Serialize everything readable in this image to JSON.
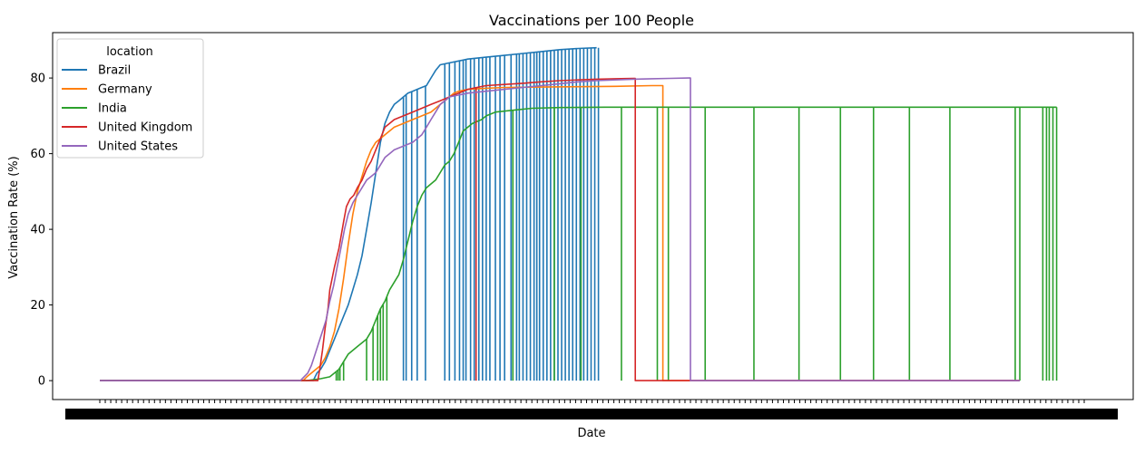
{
  "chart_data": {
    "type": "line",
    "title": "Vaccinations per 100 People",
    "xlabel": "Date",
    "ylabel": "Vaccination Rate (%)",
    "ylim": [
      -5,
      92
    ],
    "yticks": [
      0,
      20,
      40,
      60,
      80
    ],
    "xticks_note": "dense overlapping date tick labels (unreadable)",
    "grid": false,
    "legend": {
      "title": "location",
      "placement": "top-left",
      "entries": [
        "Brazil",
        "Germany",
        "India",
        "United Kingdom",
        "United States"
      ]
    },
    "series": [
      {
        "name": "Brazil",
        "color": "#1f77b4",
        "points": [
          [
            0,
            0
          ],
          [
            232,
            0
          ],
          [
            234,
            1
          ],
          [
            236,
            2
          ],
          [
            240,
            3
          ],
          [
            245,
            5
          ],
          [
            250,
            8
          ],
          [
            255,
            11
          ],
          [
            260,
            14
          ],
          [
            265,
            17
          ],
          [
            270,
            20
          ],
          [
            275,
            24
          ],
          [
            280,
            28
          ],
          [
            285,
            33
          ],
          [
            290,
            40
          ],
          [
            295,
            47
          ],
          [
            300,
            55
          ],
          [
            305,
            63
          ],
          [
            310,
            68
          ],
          [
            315,
            71
          ],
          [
            320,
            73
          ],
          [
            325,
            74
          ],
          [
            330,
            75
          ],
          [
            335,
            76
          ],
          [
            340,
            76.5
          ],
          [
            345,
            77
          ],
          [
            350,
            77.5
          ],
          [
            355,
            78
          ],
          [
            360,
            80
          ],
          [
            365,
            82
          ],
          [
            370,
            83.5
          ],
          [
            380,
            84
          ],
          [
            390,
            84.5
          ],
          [
            400,
            85
          ],
          [
            420,
            85.5
          ],
          [
            440,
            86
          ],
          [
            460,
            86.5
          ],
          [
            480,
            87
          ],
          [
            500,
            87.5
          ],
          [
            520,
            87.8
          ],
          [
            540,
            88
          ]
        ],
        "dropouts_x": [
          330,
          333,
          339,
          345,
          354,
          375,
          380,
          386,
          391,
          395,
          398,
          403,
          407,
          412,
          416,
          420,
          424,
          430,
          435,
          440,
          447,
          453,
          456,
          460,
          464,
          468,
          472,
          475,
          478,
          482,
          486,
          490,
          494,
          498,
          502,
          506,
          510,
          514,
          518,
          522,
          526,
          530,
          534,
          538,
          542
        ]
      },
      {
        "name": "Germany",
        "color": "#ff7f0e",
        "points": [
          [
            0,
            0
          ],
          [
            221,
            0
          ],
          [
            225,
            1
          ],
          [
            230,
            2
          ],
          [
            240,
            4
          ],
          [
            245,
            6
          ],
          [
            250,
            9
          ],
          [
            255,
            13
          ],
          [
            260,
            19
          ],
          [
            265,
            27
          ],
          [
            270,
            36
          ],
          [
            275,
            44
          ],
          [
            280,
            50
          ],
          [
            285,
            54
          ],
          [
            290,
            58
          ],
          [
            295,
            61
          ],
          [
            300,
            63
          ],
          [
            310,
            65
          ],
          [
            320,
            67
          ],
          [
            330,
            68
          ],
          [
            340,
            69
          ],
          [
            350,
            70
          ],
          [
            360,
            71
          ],
          [
            365,
            72
          ],
          [
            370,
            73
          ],
          [
            375,
            74
          ],
          [
            380,
            75
          ],
          [
            385,
            76
          ],
          [
            390,
            76.5
          ],
          [
            400,
            77
          ],
          [
            420,
            77.3
          ],
          [
            440,
            77.5
          ],
          [
            480,
            77.6
          ],
          [
            520,
            77.7
          ],
          [
            560,
            77.8
          ],
          [
            600,
            78
          ],
          [
            610,
            78
          ]
        ],
        "dropouts_x": [],
        "drop_to_zero_at": 612
      },
      {
        "name": "India",
        "color": "#2ca02c",
        "points": [
          [
            0,
            0
          ],
          [
            225,
            0
          ],
          [
            240,
            0.5
          ],
          [
            250,
            1
          ],
          [
            255,
            2
          ],
          [
            260,
            3
          ],
          [
            265,
            5
          ],
          [
            270,
            7
          ],
          [
            280,
            9
          ],
          [
            290,
            11
          ],
          [
            295,
            13
          ],
          [
            300,
            16
          ],
          [
            305,
            19
          ],
          [
            310,
            21
          ],
          [
            315,
            24
          ],
          [
            320,
            26
          ],
          [
            325,
            28
          ],
          [
            330,
            32
          ],
          [
            335,
            37
          ],
          [
            340,
            42
          ],
          [
            345,
            46
          ],
          [
            350,
            49
          ],
          [
            355,
            51
          ],
          [
            360,
            52
          ],
          [
            365,
            53
          ],
          [
            370,
            55
          ],
          [
            375,
            57
          ],
          [
            380,
            58
          ],
          [
            385,
            60
          ],
          [
            390,
            63
          ],
          [
            395,
            66
          ],
          [
            400,
            67
          ],
          [
            405,
            68
          ],
          [
            415,
            69
          ],
          [
            420,
            70
          ],
          [
            430,
            71
          ],
          [
            450,
            71.5
          ],
          [
            470,
            72
          ],
          [
            500,
            72.2
          ],
          [
            550,
            72.3
          ],
          [
            600,
            72.3
          ],
          [
            700,
            72.3
          ],
          [
            800,
            72.3
          ],
          [
            900,
            72.3
          ],
          [
            1000,
            72.3
          ],
          [
            1040,
            72.3
          ]
        ],
        "dropouts_x": [
          257,
          259,
          261,
          265,
          290,
          297,
          302,
          305,
          308,
          312,
          449,
          494,
          523,
          567,
          606,
          618,
          658,
          711,
          760,
          805,
          841,
          880,
          924,
          995,
          1000,
          1025,
          1029,
          1032,
          1036,
          1040
        ]
      },
      {
        "name": "United Kingdom",
        "color": "#d62728",
        "points": [
          [
            0,
            0
          ],
          [
            237,
            0
          ],
          [
            239,
            3
          ],
          [
            242,
            8
          ],
          [
            245,
            14
          ],
          [
            248,
            19
          ],
          [
            250,
            24
          ],
          [
            255,
            30
          ],
          [
            260,
            35
          ],
          [
            265,
            42
          ],
          [
            268,
            46
          ],
          [
            272,
            48
          ],
          [
            276,
            49
          ],
          [
            280,
            51
          ],
          [
            285,
            53
          ],
          [
            290,
            56
          ],
          [
            295,
            58
          ],
          [
            300,
            61
          ],
          [
            305,
            64
          ],
          [
            310,
            67
          ],
          [
            315,
            68
          ],
          [
            320,
            69
          ],
          [
            330,
            70
          ],
          [
            340,
            71
          ],
          [
            350,
            72
          ],
          [
            360,
            73
          ],
          [
            370,
            74
          ],
          [
            380,
            75
          ],
          [
            390,
            76
          ],
          [
            400,
            77
          ],
          [
            410,
            77.5
          ],
          [
            420,
            78
          ],
          [
            440,
            78.3
          ],
          [
            460,
            78.6
          ],
          [
            480,
            79
          ],
          [
            500,
            79.3
          ],
          [
            520,
            79.5
          ],
          [
            540,
            79.7
          ],
          [
            560,
            79.8
          ],
          [
            580,
            79.9
          ]
        ],
        "dropouts_x": [
          409
        ],
        "drop_to_zero_at": 582
      },
      {
        "name": "United States",
        "color": "#9467bd",
        "points": [
          [
            0,
            0
          ],
          [
            218,
            0
          ],
          [
            222,
            1
          ],
          [
            226,
            2
          ],
          [
            230,
            4
          ],
          [
            234,
            7
          ],
          [
            238,
            10
          ],
          [
            242,
            13
          ],
          [
            246,
            16
          ],
          [
            250,
            21
          ],
          [
            254,
            25
          ],
          [
            258,
            30
          ],
          [
            262,
            35
          ],
          [
            266,
            40
          ],
          [
            270,
            44
          ],
          [
            275,
            47
          ],
          [
            280,
            49
          ],
          [
            285,
            51
          ],
          [
            290,
            53
          ],
          [
            295,
            54
          ],
          [
            300,
            55
          ],
          [
            305,
            57
          ],
          [
            310,
            59
          ],
          [
            315,
            60
          ],
          [
            320,
            61
          ],
          [
            330,
            62
          ],
          [
            340,
            63
          ],
          [
            350,
            65
          ],
          [
            355,
            67
          ],
          [
            360,
            69
          ],
          [
            365,
            71
          ],
          [
            370,
            73
          ],
          [
            375,
            74
          ],
          [
            380,
            75
          ],
          [
            390,
            75.5
          ],
          [
            400,
            76
          ],
          [
            420,
            76.5
          ],
          [
            440,
            77
          ],
          [
            460,
            77.5
          ],
          [
            480,
            78
          ],
          [
            500,
            78.5
          ],
          [
            520,
            79
          ],
          [
            540,
            79.3
          ],
          [
            560,
            79.5
          ],
          [
            580,
            79.7
          ],
          [
            600,
            79.8
          ],
          [
            620,
            79.9
          ],
          [
            640,
            80
          ]
        ],
        "dropouts_x": [],
        "drop_to_zero_at": 642
      }
    ],
    "x_range": [
      0,
      1070
    ]
  }
}
